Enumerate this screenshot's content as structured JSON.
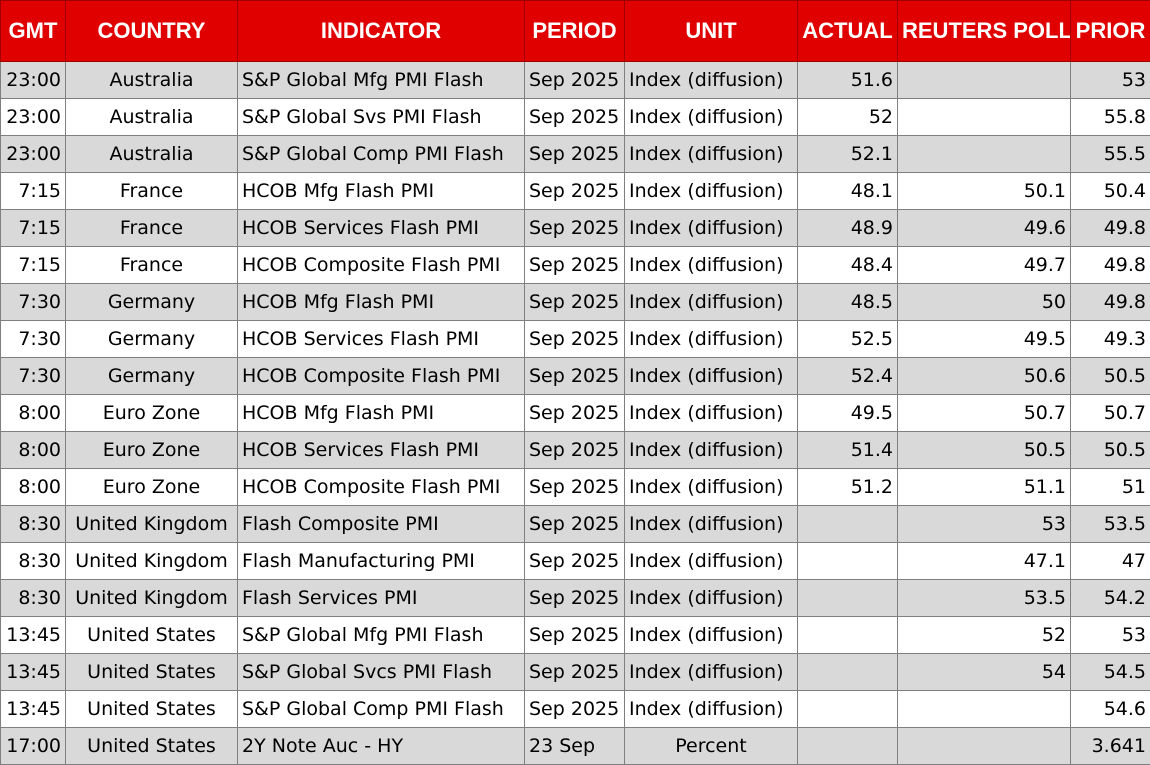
{
  "headers": {
    "gmt": "GMT",
    "country": "COUNTRY",
    "indicator": "INDICATOR",
    "period": "PERIOD",
    "unit": "UNIT",
    "actual": "ACTUAL",
    "poll": "REUTERS POLL",
    "prior": "PRIOR"
  },
  "colors": {
    "header_bg": "#e00000",
    "header_text": "#ffffff",
    "alt_row": "#d9d9d9"
  },
  "rows": [
    {
      "gmt": "23:00",
      "country": "Australia",
      "indicator": "S&P Global Mfg PMI Flash",
      "period": "Sep 2025",
      "unit": "Index (diffusion)",
      "actual": "51.6",
      "poll": "",
      "prior": "53"
    },
    {
      "gmt": "23:00",
      "country": "Australia",
      "indicator": "S&P Global Svs PMI Flash",
      "period": "Sep 2025",
      "unit": "Index (diffusion)",
      "actual": "52",
      "poll": "",
      "prior": "55.8"
    },
    {
      "gmt": "23:00",
      "country": "Australia",
      "indicator": "S&P Global Comp PMI Flash",
      "period": "Sep 2025",
      "unit": "Index (diffusion)",
      "actual": "52.1",
      "poll": "",
      "prior": "55.5"
    },
    {
      "gmt": "7:15",
      "country": "France",
      "indicator": "HCOB Mfg Flash PMI",
      "period": "Sep 2025",
      "unit": "Index (diffusion)",
      "actual": "48.1",
      "poll": "50.1",
      "prior": "50.4"
    },
    {
      "gmt": "7:15",
      "country": "France",
      "indicator": "HCOB Services Flash PMI",
      "period": "Sep 2025",
      "unit": "Index (diffusion)",
      "actual": "48.9",
      "poll": "49.6",
      "prior": "49.8"
    },
    {
      "gmt": "7:15",
      "country": "France",
      "indicator": "HCOB Composite Flash PMI",
      "period": "Sep 2025",
      "unit": "Index (diffusion)",
      "actual": "48.4",
      "poll": "49.7",
      "prior": "49.8"
    },
    {
      "gmt": "7:30",
      "country": "Germany",
      "indicator": "HCOB Mfg Flash PMI",
      "period": "Sep 2025",
      "unit": "Index (diffusion)",
      "actual": "48.5",
      "poll": "50",
      "prior": "49.8"
    },
    {
      "gmt": "7:30",
      "country": "Germany",
      "indicator": "HCOB Services Flash PMI",
      "period": "Sep 2025",
      "unit": "Index (diffusion)",
      "actual": "52.5",
      "poll": "49.5",
      "prior": "49.3"
    },
    {
      "gmt": "7:30",
      "country": "Germany",
      "indicator": "HCOB Composite Flash PMI",
      "period": "Sep 2025",
      "unit": "Index (diffusion)",
      "actual": "52.4",
      "poll": "50.6",
      "prior": "50.5"
    },
    {
      "gmt": "8:00",
      "country": "Euro Zone",
      "indicator": "HCOB Mfg Flash PMI",
      "period": "Sep 2025",
      "unit": "Index (diffusion)",
      "actual": "49.5",
      "poll": "50.7",
      "prior": "50.7"
    },
    {
      "gmt": "8:00",
      "country": "Euro Zone",
      "indicator": "HCOB Services Flash PMI",
      "period": "Sep 2025",
      "unit": "Index (diffusion)",
      "actual": "51.4",
      "poll": "50.5",
      "prior": "50.5"
    },
    {
      "gmt": "8:00",
      "country": "Euro Zone",
      "indicator": "HCOB Composite Flash PMI",
      "period": "Sep 2025",
      "unit": "Index (diffusion)",
      "actual": "51.2",
      "poll": "51.1",
      "prior": "51"
    },
    {
      "gmt": "8:30",
      "country": "United Kingdom",
      "indicator": "Flash Composite PMI",
      "period": "Sep 2025",
      "unit": "Index (diffusion)",
      "actual": "",
      "poll": "53",
      "prior": "53.5"
    },
    {
      "gmt": "8:30",
      "country": "United Kingdom",
      "indicator": "Flash Manufacturing PMI",
      "period": "Sep 2025",
      "unit": "Index (diffusion)",
      "actual": "",
      "poll": "47.1",
      "prior": "47"
    },
    {
      "gmt": "8:30",
      "country": "United Kingdom",
      "indicator": "Flash Services PMI",
      "period": "Sep 2025",
      "unit": "Index (diffusion)",
      "actual": "",
      "poll": "53.5",
      "prior": "54.2"
    },
    {
      "gmt": "13:45",
      "country": "United States",
      "indicator": "S&P Global Mfg PMI Flash",
      "period": "Sep 2025",
      "unit": "Index (diffusion)",
      "actual": "",
      "poll": "52",
      "prior": "53"
    },
    {
      "gmt": "13:45",
      "country": "United States",
      "indicator": "S&P Global Svcs PMI Flash",
      "period": "Sep 2025",
      "unit": "Index (diffusion)",
      "actual": "",
      "poll": "54",
      "prior": "54.5"
    },
    {
      "gmt": "13:45",
      "country": "United States",
      "indicator": "S&P Global Comp PMI Flash",
      "period": "Sep 2025",
      "unit": "Index (diffusion)",
      "actual": "",
      "poll": "",
      "prior": "54.6"
    },
    {
      "gmt": "17:00",
      "country": "United States",
      "indicator": "2Y Note Auc - HY",
      "period": "23 Sep",
      "unit": "Percent",
      "actual": "",
      "poll": "",
      "prior": "3.641"
    }
  ]
}
